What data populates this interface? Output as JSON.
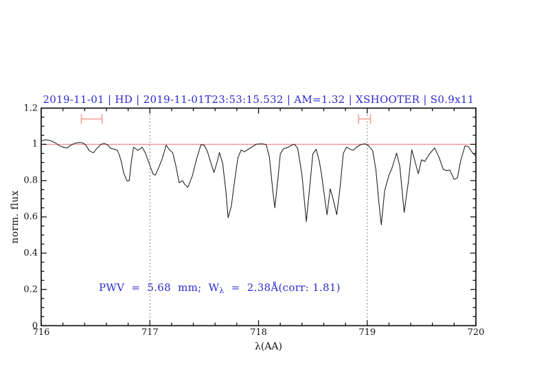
{
  "title": {
    "text": "2019-11-01 | HD | 2019-11-01T23:53:15.532 | AM=1.32 | XSHOOTER | S0.9x11",
    "color": "#2a2ad0"
  },
  "annotation": {
    "prefix": "PWV  =  5.68  mm;  W",
    "sub": "λ",
    "suffix": "  =  2.38Å(corr: 1.81)",
    "color": "#2a2ad0"
  },
  "measurements": {
    "pwv_mm": 5.68,
    "w_lambda_angstrom": 2.38,
    "corr": 1.81,
    "airmass": 1.32
  },
  "axes": {
    "xlabel": "λ(AA)",
    "ylabel": "norm. flux",
    "xlim": [
      716,
      720
    ],
    "ylim": [
      0,
      1.2
    ],
    "xtick_labels": [
      "716",
      "717",
      "718",
      "719",
      "720"
    ],
    "xticks": [
      716,
      717,
      718,
      719,
      720
    ],
    "x_minor_step": 0.2,
    "ytick_labels": [
      "0",
      "0.2",
      "0.4",
      "0.6",
      "0.8",
      "1",
      "1.2"
    ],
    "yticks": [
      0,
      0.2,
      0.4,
      0.6,
      0.8,
      1,
      1.2
    ],
    "y_minor_step": 0.05
  },
  "colors": {
    "axis": "#111111",
    "spectrum": "#222222",
    "reference_line": "#f4837d",
    "marker": "#f29a95",
    "dotted_line": "#555555",
    "text_blue": "#2a2ad0",
    "background": "#ffffff"
  },
  "chart_data": {
    "type": "line",
    "title": "2019-11-01 | HD | 2019-11-01T23:53:15.532 | AM=1.32 | XSHOOTER | S0.9x11",
    "xlabel": "λ(AA)",
    "ylabel": "norm. flux",
    "xlim": [
      716,
      720
    ],
    "ylim": [
      0,
      1.2
    ],
    "grid": false,
    "legend": "none",
    "reference_line_y": 1.0,
    "dotted_vlines": [
      717,
      719
    ],
    "range_markers": [
      {
        "x1": 716.37,
        "x2": 716.56,
        "y": 1.14
      },
      {
        "x1": 718.92,
        "x2": 719.03,
        "y": 1.14
      }
    ],
    "series": [
      {
        "name": "telluric-spectrum",
        "x": [
          716.0,
          716.04,
          716.08,
          716.13,
          716.17,
          716.21,
          716.24,
          716.27,
          716.31,
          716.35,
          716.38,
          716.41,
          716.44,
          716.48,
          716.51,
          716.55,
          716.58,
          716.61,
          716.64,
          716.67,
          716.7,
          716.72,
          716.74,
          716.76,
          716.79,
          716.81,
          716.83,
          716.85,
          716.89,
          716.93,
          716.96,
          717.0,
          717.03,
          717.05,
          717.08,
          717.11,
          717.15,
          717.18,
          717.21,
          717.24,
          717.27,
          717.3,
          717.32,
          717.35,
          717.39,
          717.43,
          717.47,
          717.5,
          717.53,
          717.56,
          717.59,
          717.62,
          717.64,
          717.67,
          717.7,
          717.72,
          717.75,
          717.78,
          717.81,
          717.84,
          717.87,
          717.9,
          717.94,
          717.98,
          718.03,
          718.07,
          718.1,
          718.13,
          718.15,
          718.18,
          718.2,
          718.23,
          718.27,
          718.3,
          718.33,
          718.36,
          718.4,
          718.44,
          718.47,
          718.5,
          718.53,
          718.56,
          718.58,
          718.61,
          718.63,
          718.66,
          718.69,
          718.72,
          718.75,
          718.78,
          718.81,
          718.84,
          718.87,
          718.9,
          718.94,
          718.98,
          719.01,
          719.05,
          719.08,
          719.11,
          719.13,
          719.16,
          719.2,
          719.23,
          719.27,
          719.3,
          719.34,
          719.38,
          719.41,
          719.44,
          719.47,
          719.5,
          719.53,
          719.57,
          719.62,
          719.66,
          719.7,
          719.73,
          719.76,
          719.8,
          719.83,
          719.86,
          719.9,
          719.93,
          719.97,
          720.0
        ],
        "y": [
          1.02,
          1.025,
          1.022,
          1.008,
          0.992,
          0.983,
          0.98,
          0.995,
          1.006,
          1.01,
          1.009,
          0.997,
          0.966,
          0.953,
          0.976,
          1.0,
          1.005,
          0.998,
          0.978,
          0.974,
          0.968,
          0.94,
          0.898,
          0.84,
          0.798,
          0.8,
          0.905,
          0.984,
          0.967,
          0.984,
          0.95,
          0.883,
          0.835,
          0.83,
          0.87,
          0.915,
          0.996,
          0.97,
          0.954,
          0.879,
          0.788,
          0.8,
          0.78,
          0.763,
          0.825,
          0.92,
          0.998,
          0.996,
          0.96,
          0.9,
          0.845,
          0.905,
          0.955,
          0.895,
          0.74,
          0.595,
          0.66,
          0.8,
          0.925,
          0.969,
          0.959,
          0.971,
          0.986,
          1.001,
          1.003,
          0.999,
          0.93,
          0.75,
          0.65,
          0.82,
          0.947,
          0.976,
          0.983,
          0.994,
          1.001,
          0.978,
          0.83,
          0.574,
          0.76,
          0.947,
          0.973,
          0.905,
          0.832,
          0.7,
          0.612,
          0.755,
          0.69,
          0.612,
          0.76,
          0.95,
          0.985,
          0.974,
          0.967,
          0.984,
          0.999,
          1.003,
          0.994,
          0.965,
          0.86,
          0.66,
          0.556,
          0.744,
          0.83,
          0.872,
          0.952,
          0.88,
          0.625,
          0.8,
          0.971,
          0.905,
          0.838,
          0.915,
          0.906,
          0.945,
          0.981,
          0.93,
          0.862,
          0.855,
          0.858,
          0.807,
          0.815,
          0.908,
          0.992,
          0.988,
          0.952,
          0.935
        ]
      }
    ]
  }
}
